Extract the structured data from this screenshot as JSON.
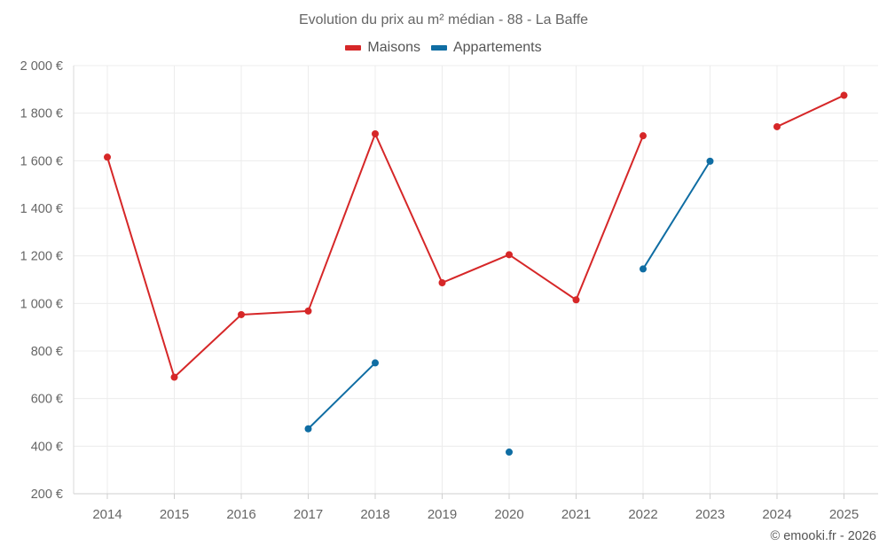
{
  "chart_data": {
    "type": "line",
    "title": "Evolution du prix au m² médian - 88 - La Baffe",
    "xlabel": "",
    "ylabel": "",
    "categories": [
      "2014",
      "2015",
      "2016",
      "2017",
      "2018",
      "2019",
      "2020",
      "2021",
      "2022",
      "2023",
      "2024",
      "2025"
    ],
    "ylim": [
      200,
      2000
    ],
    "yticks": [
      200,
      400,
      600,
      800,
      1000,
      1200,
      1400,
      1600,
      1800,
      2000
    ],
    "ytick_labels": [
      "200 €",
      "400 €",
      "600 €",
      "800 €",
      "1 000 €",
      "1 200 €",
      "1 400 €",
      "1 600 €",
      "1 800 €",
      "2 000 €"
    ],
    "grid": true,
    "legend_position": "top-center",
    "series": [
      {
        "name": "Maisons",
        "color": "#d62728",
        "values": [
          1615,
          690,
          953,
          968,
          1713,
          1087,
          1205,
          1015,
          1705,
          null,
          1743,
          1875
        ]
      },
      {
        "name": "Appartements",
        "color": "#0f6da3",
        "values": [
          null,
          null,
          null,
          473,
          750,
          null,
          375,
          null,
          1145,
          1598,
          null,
          null
        ]
      }
    ]
  },
  "credit": "© emooki.fr - 2026"
}
